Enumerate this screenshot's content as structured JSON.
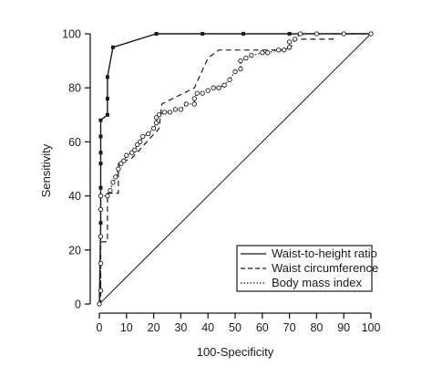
{
  "chart_data": {
    "type": "line",
    "xlabel": "100-Specificity",
    "ylabel": "Sensitivity",
    "xlim": [
      0,
      100
    ],
    "ylim": [
      0,
      100
    ],
    "xticks": [
      "0",
      "10",
      "20",
      "30",
      "40",
      "50",
      "60",
      "70",
      "80",
      "90",
      "100"
    ],
    "yticks": [
      "0",
      "20",
      "40",
      "60",
      "80",
      "100"
    ],
    "legend_position": "bottom-right",
    "reference_line": [
      [
        0,
        0
      ],
      [
        100,
        100
      ]
    ],
    "series": [
      {
        "name": "Waist-to-height ratio",
        "style": "solid",
        "marker": "filled-square",
        "points": [
          [
            0,
            0
          ],
          [
            0.5,
            30
          ],
          [
            0.5,
            40
          ],
          [
            0.5,
            43
          ],
          [
            0.5,
            52
          ],
          [
            0.5,
            56
          ],
          [
            0.5,
            62
          ],
          [
            0.5,
            68
          ],
          [
            3,
            70
          ],
          [
            3,
            76
          ],
          [
            3,
            84
          ],
          [
            5,
            95
          ],
          [
            21,
            100
          ],
          [
            38,
            100
          ],
          [
            53,
            100
          ],
          [
            70,
            100
          ],
          [
            100,
            100
          ]
        ]
      },
      {
        "name": "Waist circumference",
        "style": "dashed",
        "marker": "none",
        "points": [
          [
            0,
            0
          ],
          [
            0.5,
            0
          ],
          [
            0.5,
            23
          ],
          [
            3,
            23
          ],
          [
            3,
            41
          ],
          [
            7,
            41
          ],
          [
            7,
            52
          ],
          [
            12,
            54
          ],
          [
            22,
            65
          ],
          [
            23,
            74
          ],
          [
            35,
            80
          ],
          [
            40,
            91
          ],
          [
            44,
            94
          ],
          [
            70,
            94
          ],
          [
            72,
            98
          ],
          [
            86,
            98
          ],
          [
            86,
            100
          ],
          [
            100,
            100
          ]
        ]
      },
      {
        "name": "Body mass index",
        "style": "dotted",
        "marker": "open-circle",
        "points": [
          [
            0,
            0
          ],
          [
            0.5,
            5
          ],
          [
            0.5,
            15
          ],
          [
            0.5,
            25
          ],
          [
            0.5,
            35
          ],
          [
            0.5,
            40
          ],
          [
            3,
            40
          ],
          [
            4,
            42
          ],
          [
            5,
            45
          ],
          [
            6,
            47
          ],
          [
            7,
            50
          ],
          [
            8,
            52
          ],
          [
            9,
            53
          ],
          [
            10,
            55
          ],
          [
            12,
            56
          ],
          [
            13,
            57
          ],
          [
            14,
            59
          ],
          [
            15,
            60
          ],
          [
            16,
            62
          ],
          [
            18,
            63
          ],
          [
            20,
            65
          ],
          [
            21,
            67
          ],
          [
            21,
            69
          ],
          [
            22,
            70
          ],
          [
            24,
            71
          ],
          [
            26,
            71
          ],
          [
            28,
            72
          ],
          [
            30,
            72
          ],
          [
            32,
            74
          ],
          [
            35,
            74
          ],
          [
            35,
            76
          ],
          [
            36,
            78
          ],
          [
            38,
            78
          ],
          [
            40,
            79
          ],
          [
            42,
            80
          ],
          [
            44,
            80
          ],
          [
            46,
            81
          ],
          [
            48,
            83
          ],
          [
            50,
            86
          ],
          [
            52,
            87
          ],
          [
            52,
            90
          ],
          [
            54,
            91
          ],
          [
            56,
            92
          ],
          [
            60,
            93
          ],
          [
            62,
            93
          ],
          [
            66,
            94
          ],
          [
            68,
            94
          ],
          [
            70,
            95
          ],
          [
            70,
            97
          ],
          [
            72,
            98
          ],
          [
            74,
            100
          ],
          [
            80,
            100
          ],
          [
            90,
            100
          ],
          [
            100,
            100
          ]
        ]
      }
    ]
  }
}
